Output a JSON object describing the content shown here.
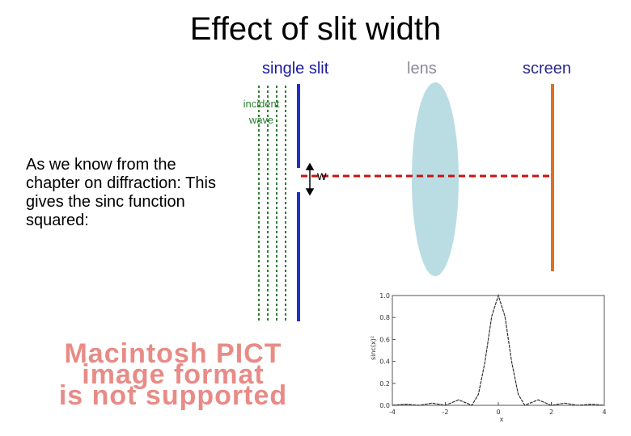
{
  "title": "Effect of slit width",
  "labels": {
    "single_slit": "single slit",
    "lens": "lens",
    "screen": "screen",
    "incident_line1": "incident",
    "incident_line2": "wave",
    "w": "w"
  },
  "body_text": "As we know from the chapter on diffraction: This gives the sinc function squared:",
  "pict_notice": {
    "line1": "Macintosh PICT",
    "line2": "image format",
    "line3": "is not supported"
  },
  "colors": {
    "wave": "#2e7d32",
    "slit": "#1f2fd0",
    "lens": "#b9dde2",
    "screen": "#e07020",
    "beam": "#cc1111",
    "pict_text": "#e88b86"
  },
  "chart_data": {
    "type": "line",
    "title": "",
    "xlabel": "x",
    "ylabel": "sinc(x)²",
    "xlim": [
      -4,
      4
    ],
    "ylim": [
      0,
      1
    ],
    "x_ticks": [
      "-4",
      "-2",
      "0",
      "2",
      "4"
    ],
    "y_ticks": [
      "0.0",
      "0.2",
      "0.4",
      "0.6",
      "0.8",
      "1.0"
    ],
    "series": [
      {
        "x": [
          -4,
          -3.5,
          -3,
          -2.5,
          -2,
          -1.5,
          -1,
          -0.75,
          -0.5,
          -0.25,
          0,
          0.25,
          0.5,
          0.75,
          1,
          1.5,
          2,
          2.5,
          3,
          3.5,
          4
        ],
        "values": [
          0,
          0.01,
          0,
          0.02,
          0,
          0.05,
          0,
          0.1,
          0.4,
          0.81,
          1,
          0.81,
          0.4,
          0.1,
          0,
          0.05,
          0,
          0.02,
          0,
          0.01,
          0
        ]
      }
    ]
  }
}
